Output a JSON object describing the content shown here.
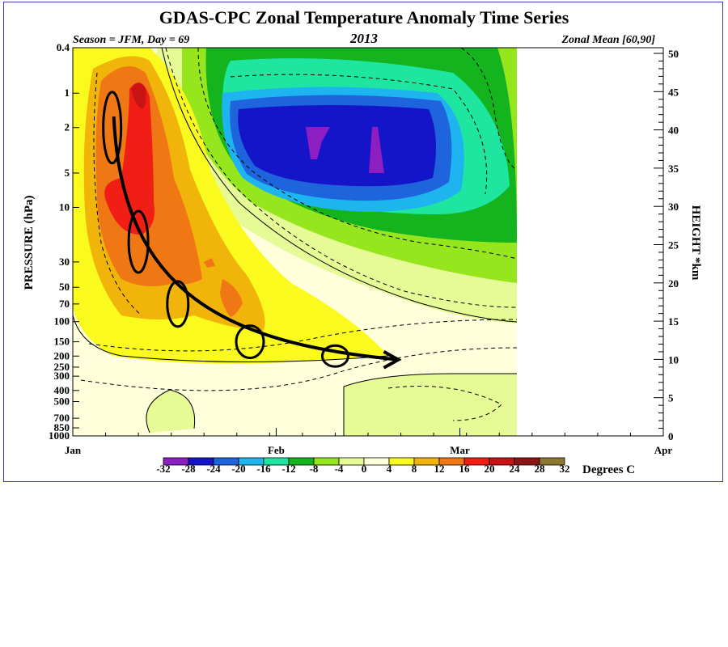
{
  "chart_data": {
    "type": "heatmap",
    "title": "GDAS-CPC Zonal Temperature Anomaly Time Series",
    "subtitle_left": "Season = JFM, Day =  69",
    "subtitle_center": "2013",
    "subtitle_right": "Zonal Mean [60,90]",
    "ylabel": "PRESSURE (hPa)",
    "y2label": "HEIGHT *km",
    "x_tick_labels": [
      "Jan",
      "Feb",
      "Mar",
      "Apr"
    ],
    "x_ticks_day": [
      0,
      31,
      59,
      90
    ],
    "x_range_days": [
      0,
      90
    ],
    "data_through_day": 69,
    "y_ticks_pressure": [
      0.4,
      1,
      2,
      5,
      10,
      30,
      50,
      70,
      100,
      150,
      200,
      250,
      300,
      400,
      500,
      700,
      850,
      1000
    ],
    "y_tick_labels": [
      "0.4",
      "1",
      "2",
      "5",
      "10",
      "30",
      "50",
      "70",
      "100",
      "150",
      "200",
      "250",
      "300",
      "400",
      "500",
      "700",
      "850",
      "1000"
    ],
    "y_range_pressure": [
      1000,
      0.4
    ],
    "y_scale": "log",
    "height_ticks_km": [
      0,
      5,
      10,
      15,
      20,
      25,
      30,
      35,
      40,
      45,
      50
    ],
    "height_tick_labels": [
      "0",
      "5",
      "10",
      "15",
      "20",
      "25",
      "30",
      "35",
      "40",
      "45",
      "50"
    ],
    "colorbar": {
      "label": "Degrees C",
      "levels": [
        -32,
        -28,
        -24,
        -20,
        -16,
        -12,
        -8,
        -4,
        0,
        4,
        8,
        12,
        16,
        20,
        24,
        28,
        32
      ],
      "level_labels": [
        "-32",
        "-28",
        "-24",
        "-20",
        "-16",
        "-12",
        "-8",
        "-4",
        "0",
        "4",
        "8",
        "12",
        "16",
        "20",
        "24",
        "28",
        "32"
      ],
      "colors": [
        "#8c1ec2",
        "#1414c8",
        "#1e64dc",
        "#1eb4f0",
        "#1ee6a0",
        "#14b41e",
        "#96e61e",
        "#e6fa96",
        "#ffffdc",
        "#fafa1e",
        "#f0b40a",
        "#f07814",
        "#f01e14",
        "#c81414",
        "#8c1414",
        "#8c7832"
      ]
    },
    "anomaly_features": [
      {
        "kind": "warm",
        "peak_day": 8,
        "pressure_range_hPa": [
          0.5,
          150
        ],
        "max_value_C": 20
      },
      {
        "kind": "cold",
        "peak_day": 35,
        "pressure_range_hPa": [
          0.4,
          50
        ],
        "min_value_C": -32
      },
      {
        "kind": "descent_path",
        "path_days": [
          6,
          10,
          16,
          27,
          40
        ],
        "path_pressure_hPa": [
          2,
          20,
          70,
          150,
          200
        ]
      }
    ],
    "grid": false,
    "legend": "bottom"
  },
  "colors": {
    "frame_border": "#3b3bb0",
    "annotation": "#000000"
  }
}
